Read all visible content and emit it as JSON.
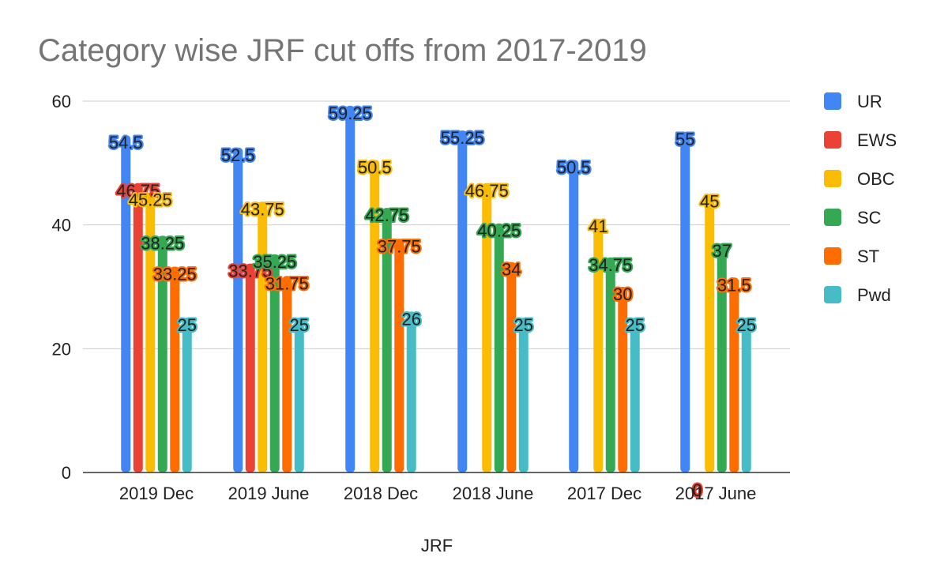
{
  "chart_data": {
    "type": "bar",
    "title": "Category wise JRF cut offs from 2017-2019",
    "xlabel": "JRF",
    "ylabel": "",
    "ylim": [
      0,
      60
    ],
    "yticks": [
      0,
      20,
      40,
      60
    ],
    "grid": true,
    "legend_position": "right",
    "categories": [
      "2019 Dec",
      "2019 June",
      "2018 Dec",
      "2018 June",
      "2017 Dec",
      "2017 June"
    ],
    "series": [
      {
        "name": "UR",
        "color": "#4285F4",
        "values": [
          54.5,
          52.5,
          59.25,
          55.25,
          50.5,
          55
        ]
      },
      {
        "name": "EWS",
        "color": "#EA4335",
        "values": [
          46.75,
          33.75,
          null,
          null,
          null,
          0
        ]
      },
      {
        "name": "OBC",
        "color": "#FBBC04",
        "values": [
          45.25,
          43.75,
          50.5,
          46.75,
          41,
          45
        ]
      },
      {
        "name": "SC",
        "color": "#34A853",
        "values": [
          38.25,
          35.25,
          42.75,
          40.25,
          34.75,
          37
        ]
      },
      {
        "name": "ST",
        "color": "#FF6D01",
        "values": [
          33.25,
          31.75,
          37.75,
          34,
          30,
          31.5
        ]
      },
      {
        "name": "Pwd",
        "color": "#46BDC6",
        "values": [
          25,
          25,
          26,
          25,
          25,
          25
        ]
      }
    ]
  }
}
